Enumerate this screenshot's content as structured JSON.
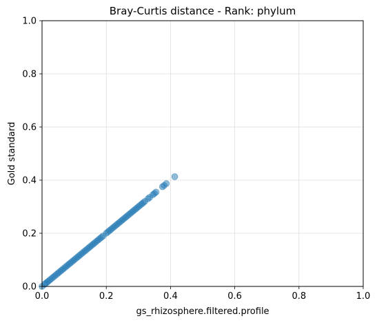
{
  "chart_data": {
    "type": "scatter",
    "title": "Bray-Curtis distance - Rank: phylum",
    "xlabel": "gs_rhizosphere.filtered.profile",
    "ylabel": "Gold standard",
    "xlim": [
      0,
      1
    ],
    "ylim": [
      0,
      1
    ],
    "xticks": [
      "0.0",
      "0.2",
      "0.4",
      "0.6",
      "0.8",
      "1.0"
    ],
    "yticks": [
      "0.0",
      "0.2",
      "0.4",
      "0.6",
      "0.8",
      "1.0"
    ],
    "grid": true,
    "color": "#1f77b4",
    "points": [
      [
        0.0,
        0.0
      ],
      [
        0.008,
        0.008
      ],
      [
        0.012,
        0.012
      ],
      [
        0.016,
        0.016
      ],
      [
        0.02,
        0.02
      ],
      [
        0.025,
        0.025
      ],
      [
        0.03,
        0.03
      ],
      [
        0.035,
        0.035
      ],
      [
        0.04,
        0.04
      ],
      [
        0.045,
        0.045
      ],
      [
        0.05,
        0.05
      ],
      [
        0.055,
        0.055
      ],
      [
        0.06,
        0.06
      ],
      [
        0.065,
        0.065
      ],
      [
        0.07,
        0.07
      ],
      [
        0.075,
        0.075
      ],
      [
        0.08,
        0.08
      ],
      [
        0.085,
        0.085
      ],
      [
        0.09,
        0.09
      ],
      [
        0.095,
        0.095
      ],
      [
        0.1,
        0.1
      ],
      [
        0.105,
        0.105
      ],
      [
        0.11,
        0.11
      ],
      [
        0.115,
        0.115
      ],
      [
        0.12,
        0.12
      ],
      [
        0.125,
        0.125
      ],
      [
        0.13,
        0.13
      ],
      [
        0.135,
        0.135
      ],
      [
        0.14,
        0.14
      ],
      [
        0.145,
        0.145
      ],
      [
        0.15,
        0.15
      ],
      [
        0.155,
        0.155
      ],
      [
        0.16,
        0.16
      ],
      [
        0.165,
        0.165
      ],
      [
        0.17,
        0.17
      ],
      [
        0.175,
        0.175
      ],
      [
        0.18,
        0.18
      ],
      [
        0.185,
        0.185
      ],
      [
        0.19,
        0.19
      ],
      [
        0.2,
        0.2
      ],
      [
        0.205,
        0.205
      ],
      [
        0.21,
        0.21
      ],
      [
        0.215,
        0.215
      ],
      [
        0.22,
        0.22
      ],
      [
        0.225,
        0.225
      ],
      [
        0.23,
        0.23
      ],
      [
        0.235,
        0.235
      ],
      [
        0.24,
        0.24
      ],
      [
        0.245,
        0.245
      ],
      [
        0.25,
        0.25
      ],
      [
        0.255,
        0.255
      ],
      [
        0.26,
        0.26
      ],
      [
        0.265,
        0.265
      ],
      [
        0.27,
        0.27
      ],
      [
        0.275,
        0.275
      ],
      [
        0.28,
        0.28
      ],
      [
        0.285,
        0.285
      ],
      [
        0.29,
        0.29
      ],
      [
        0.295,
        0.295
      ],
      [
        0.3,
        0.3
      ],
      [
        0.305,
        0.305
      ],
      [
        0.31,
        0.31
      ],
      [
        0.315,
        0.315
      ],
      [
        0.32,
        0.32
      ],
      [
        0.33,
        0.33
      ],
      [
        0.335,
        0.335
      ],
      [
        0.345,
        0.345
      ],
      [
        0.35,
        0.35
      ],
      [
        0.355,
        0.355
      ],
      [
        0.375,
        0.375
      ],
      [
        0.38,
        0.38
      ],
      [
        0.387,
        0.387
      ],
      [
        0.413,
        0.413
      ]
    ]
  }
}
